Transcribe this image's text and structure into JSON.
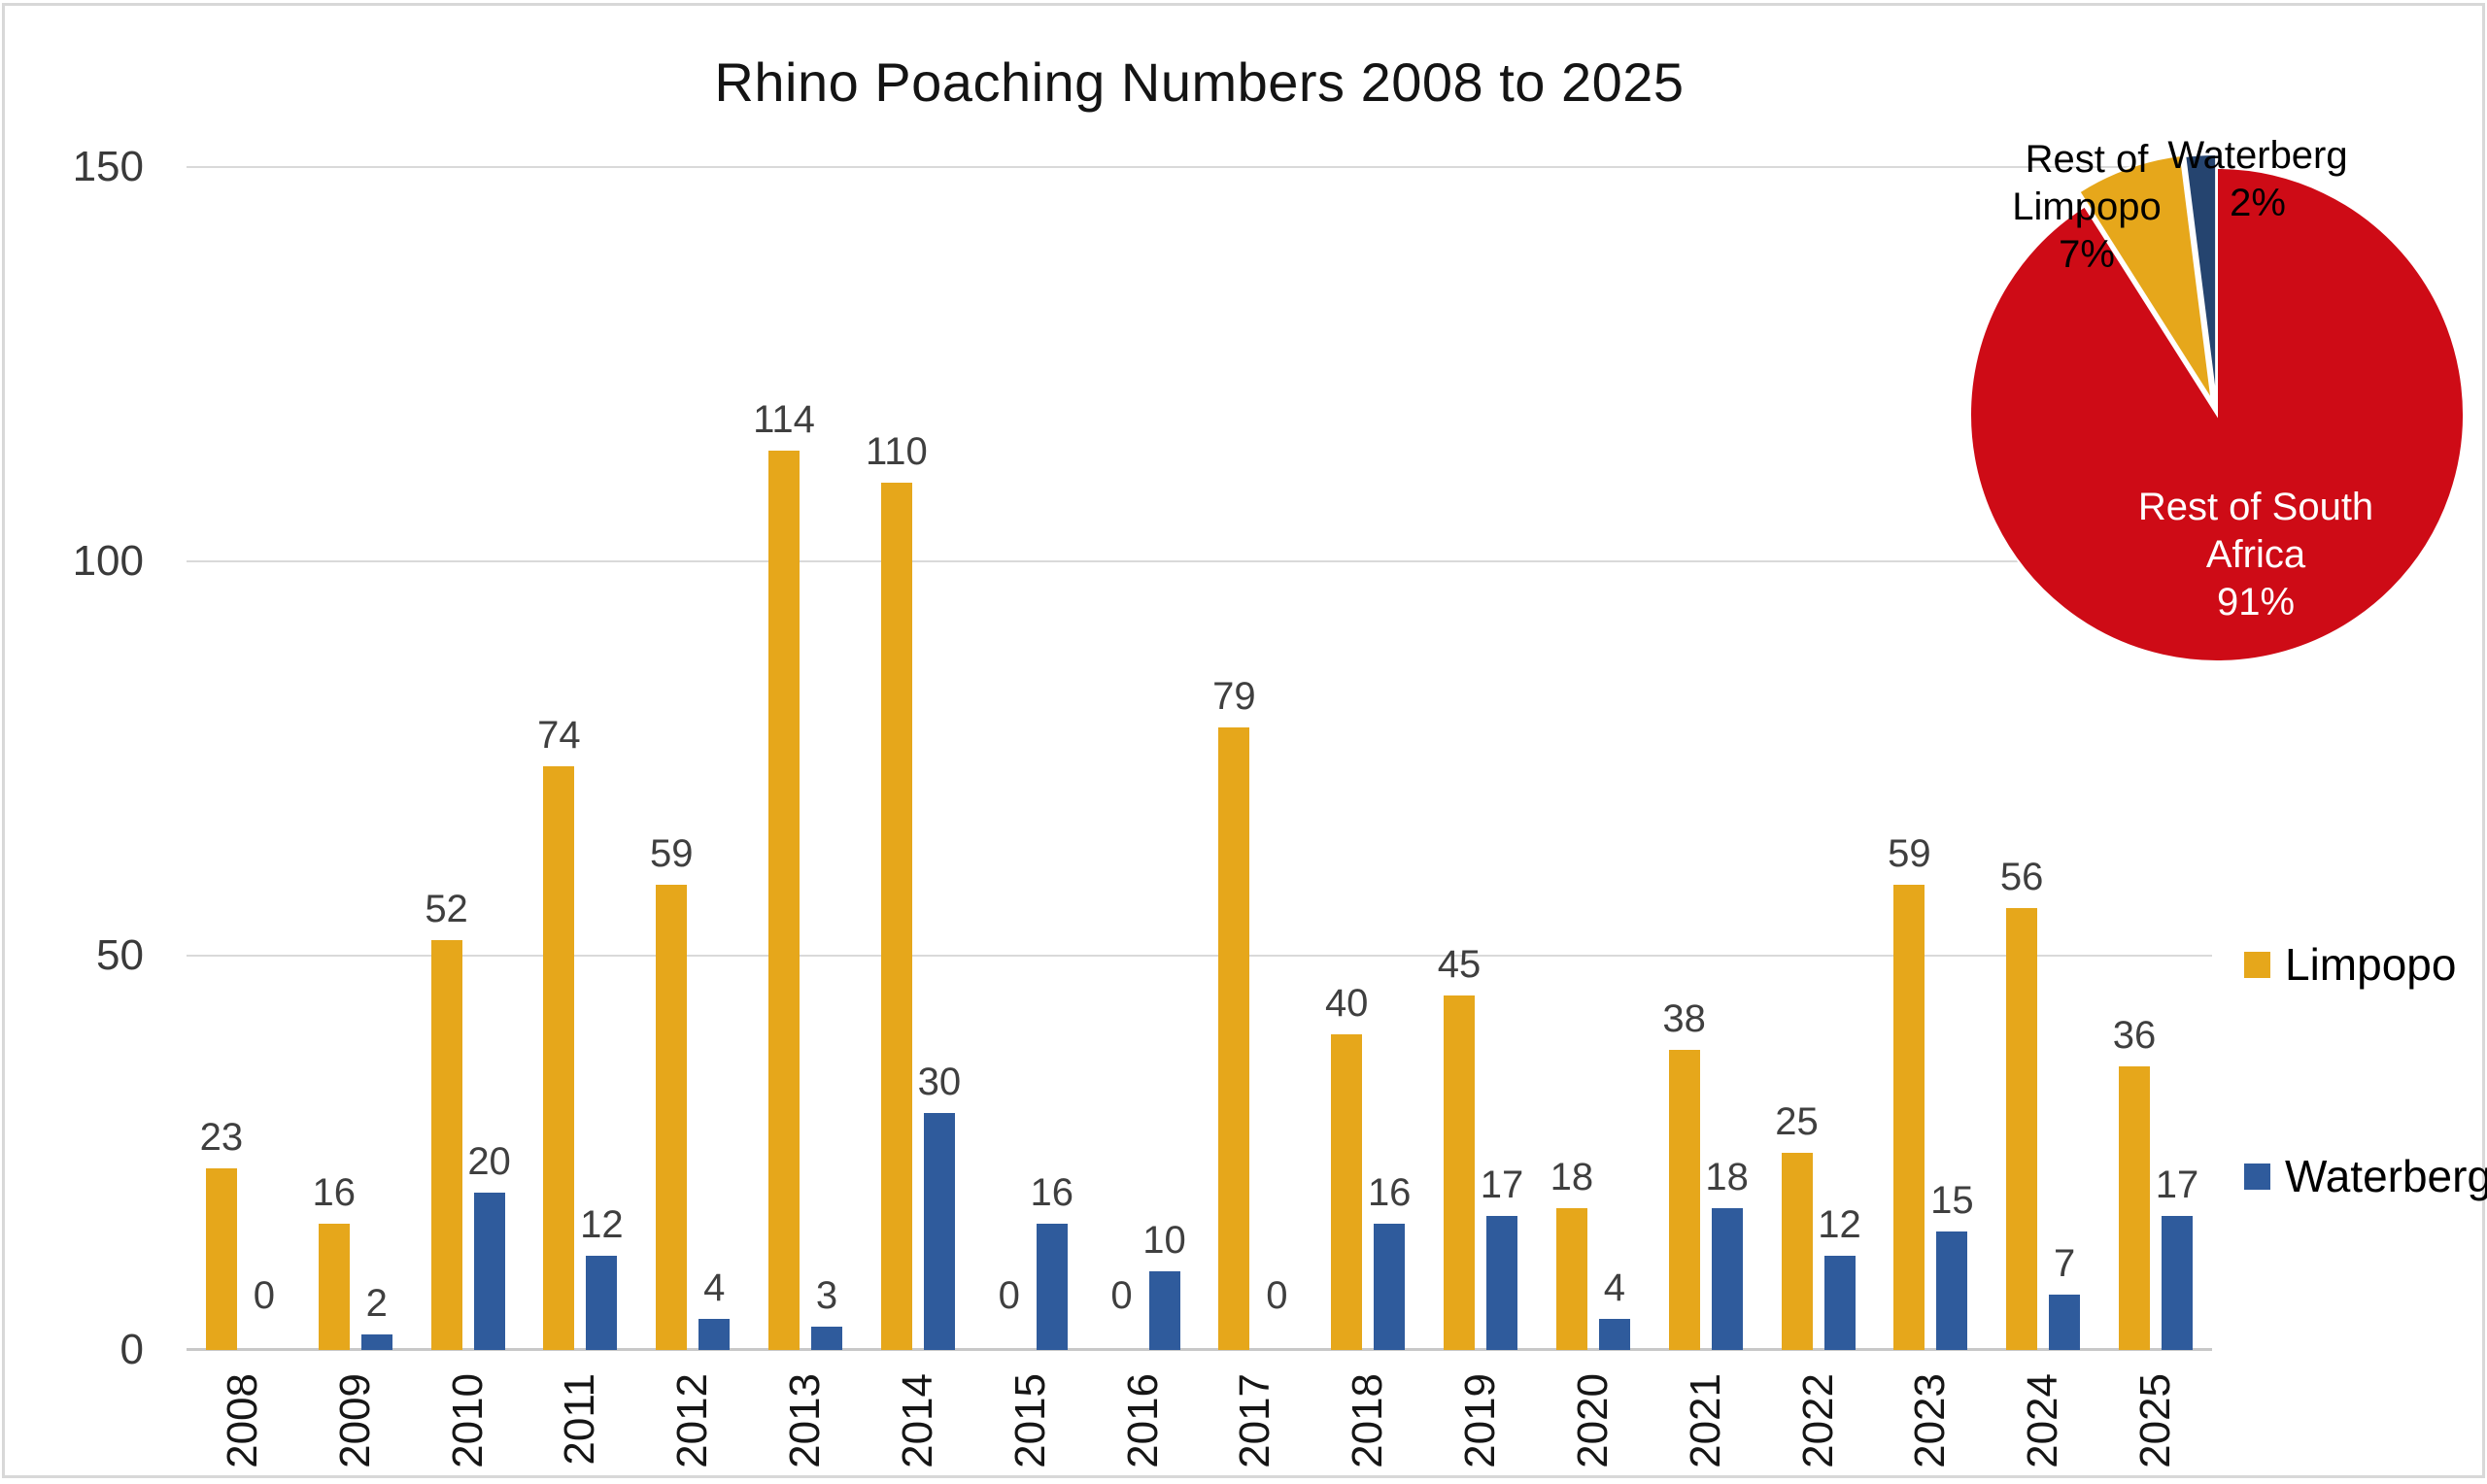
{
  "chart_data": [
    {
      "type": "bar",
      "title": "Rhino Poaching Numbers 2008 to 2025",
      "categories": [
        "2008",
        "2009",
        "2010",
        "2011",
        "2012",
        "2013",
        "2014",
        "2015",
        "2016",
        "2017",
        "2018",
        "2019",
        "2020",
        "2021",
        "2022",
        "2023",
        "2024",
        "2025"
      ],
      "series": [
        {
          "name": "Limpopo",
          "color": "#e6a71b",
          "values": [
            23,
            16,
            52,
            74,
            59,
            114,
            110,
            0,
            0,
            79,
            40,
            45,
            18,
            38,
            25,
            59,
            56,
            36
          ]
        },
        {
          "name": "Waterberg",
          "color": "#2f5b9c",
          "values": [
            0,
            2,
            20,
            12,
            4,
            3,
            30,
            16,
            10,
            0,
            16,
            17,
            4,
            18,
            12,
            15,
            7,
            17
          ]
        }
      ],
      "xlabel": "",
      "ylabel": "",
      "ylim": [
        0,
        150
      ],
      "yticks": [
        0,
        50,
        100,
        150
      ],
      "grid": true,
      "value_labels": true,
      "legend_position": "right"
    },
    {
      "type": "pie",
      "slices": [
        {
          "label": "Rest of South Africa",
          "pct": 91,
          "color": "#ce0b16",
          "label_lines": [
            "Rest of South",
            "Africa",
            "91%"
          ],
          "label_color": "#ffffff"
        },
        {
          "label": "Rest of Limpopo",
          "pct": 7,
          "color": "#e6a71b",
          "label_lines": [
            "Rest of",
            "Limpopo",
            "7%"
          ],
          "label_color": "#000000"
        },
        {
          "label": "Waterberg",
          "pct": 2,
          "color": "#25446f",
          "label_lines": [
            "Waterberg",
            "2%"
          ],
          "label_color": "#000000"
        }
      ],
      "start_angle": "top",
      "direction": "clockwise"
    }
  ],
  "legend": {
    "items": [
      {
        "label": "Limpopo"
      },
      {
        "label": "Waterberg"
      }
    ]
  }
}
